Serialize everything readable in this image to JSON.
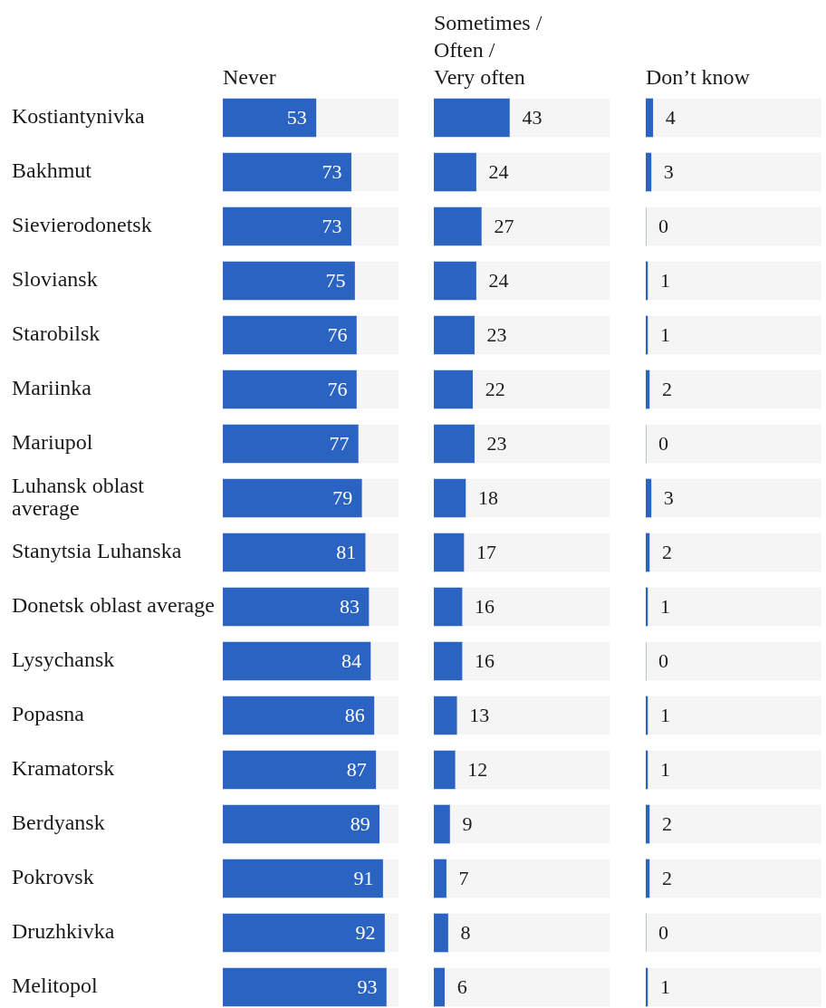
{
  "chart_data": [
    {
      "type": "bar",
      "orientation": "horizontal",
      "stacked": true,
      "title": "Never",
      "categories": [
        "Kostiantynivka",
        "Bakhmut",
        "Sievierodonetsk",
        "Sloviansk",
        "Starobilsk",
        "Mariinka",
        "Mariupol",
        "Luhansk oblast average",
        "Stanytsia Luhanska",
        "Donetsk oblast average",
        "Lysychansk",
        "Popasna",
        "Kramatorsk",
        "Berdyansk",
        "Pokrovsk",
        "Druzhkivka",
        "Melitopol"
      ],
      "series": [
        {
          "color": "#2a63c1",
          "values": [
            53,
            73,
            73,
            75,
            76,
            76,
            77,
            79,
            81,
            83,
            84,
            86,
            87,
            89,
            91,
            92,
            93
          ],
          "value_labels": [
            "53",
            "73",
            "73",
            "75",
            "76",
            "76",
            "77",
            "79",
            "81",
            "83",
            "84",
            "86",
            "87",
            "89",
            "91",
            "92",
            "93"
          ]
        },
        {
          "color": "#f5f5f5",
          "values": [
            47,
            27,
            27,
            25,
            24,
            24,
            23,
            21,
            19,
            17,
            16,
            14,
            13,
            11,
            9,
            8,
            7
          ]
        }
      ],
      "xlim": [
        0,
        100
      ],
      "tick_labels": "y",
      "grid": false,
      "legend": false
    },
    {
      "type": "bar",
      "orientation": "horizontal",
      "stacked": true,
      "title": "Sometimes / Often / Very often",
      "categories": [
        null,
        null,
        null,
        null,
        null,
        null,
        null,
        null,
        null,
        null,
        null,
        null,
        null,
        null,
        null,
        null,
        null
      ],
      "series": [
        {
          "color": "#2a63c1",
          "values": [
            43,
            24,
            27,
            24,
            23,
            22,
            23,
            18,
            17,
            16,
            16,
            13,
            12,
            9,
            7,
            8,
            6
          ],
          "value_labels": [
            "43",
            "24",
            "27",
            "24",
            "23",
            "22",
            "23",
            "18",
            "17",
            "16",
            "16",
            "13",
            "12",
            "9",
            "7",
            "8",
            "6"
          ]
        },
        {
          "color": "#f5f5f5",
          "values": [
            57,
            76,
            73,
            76,
            77,
            78,
            77,
            82,
            83,
            84,
            84,
            87,
            88,
            91,
            93,
            92,
            94
          ]
        }
      ],
      "xlim": [
        0,
        100
      ],
      "tick_labels": false,
      "grid": false,
      "legend": false
    },
    {
      "type": "bar",
      "orientation": "horizontal",
      "stacked": true,
      "title": "Don’t know",
      "categories": [
        null,
        null,
        null,
        null,
        null,
        null,
        null,
        null,
        null,
        null,
        null,
        null,
        null,
        null,
        null,
        null,
        null
      ],
      "series": [
        {
          "color": "#2a63c1",
          "values": [
            4,
            3,
            0,
            1,
            1,
            2,
            0,
            3,
            2,
            1,
            0,
            1,
            1,
            2,
            2,
            0,
            1
          ],
          "value_labels": [
            "4",
            "3",
            "0",
            "1",
            "1",
            "2",
            "0",
            "3",
            "2",
            "1",
            "0",
            "1",
            "1",
            "2",
            "2",
            "0",
            "1"
          ]
        },
        {
          "color": "#f5f5f5",
          "values": [
            96,
            97,
            100,
            99,
            99,
            98,
            100,
            97,
            98,
            99,
            100,
            99,
            99,
            98,
            98,
            100,
            99
          ]
        }
      ],
      "xlim": [
        0,
        100
      ],
      "tick_labels": false,
      "grid": false,
      "legend": false
    }
  ]
}
